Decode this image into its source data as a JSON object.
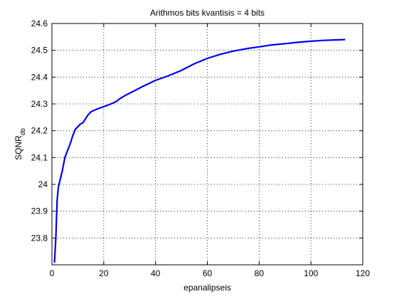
{
  "chart_data": {
    "type": "line",
    "title": "Arithmos bits kvantisis = 4 bits",
    "xlabel": "epanalipseis",
    "ylabel": "SQNR",
    "ylabel_subscript": "db",
    "xlim": [
      0,
      120
    ],
    "ylim": [
      23.7,
      24.6
    ],
    "y_data_min": 23.705,
    "xticks": [
      0,
      20,
      40,
      60,
      80,
      100,
      120
    ],
    "yticks": [
      23.8,
      23.9,
      24,
      24.1,
      24.2,
      24.3,
      24.4,
      24.5,
      24.6
    ],
    "xtick_labels": [
      "0",
      "20",
      "40",
      "60",
      "80",
      "100",
      "120"
    ],
    "ytick_labels": [
      "23.8",
      "23.9",
      "24",
      "24.1",
      "24.2",
      "24.3",
      "24.4",
      "24.5",
      "24.6"
    ],
    "grid": true,
    "line_color": "#0000ee",
    "series": [
      {
        "x": [
          1,
          1.5,
          2,
          2.5,
          3,
          3.5,
          4,
          5,
          6,
          7,
          8,
          9,
          10,
          11,
          12,
          13,
          14,
          15,
          16,
          18,
          20,
          22,
          24,
          25,
          26,
          28,
          30,
          35,
          40,
          45,
          50,
          55,
          60,
          65,
          70,
          75,
          80,
          85,
          90,
          95,
          100,
          105,
          110,
          113
        ],
        "y": [
          23.71,
          23.8,
          23.94,
          23.99,
          24.01,
          24.03,
          24.05,
          24.1,
          24.125,
          24.15,
          24.18,
          24.205,
          24.215,
          24.225,
          24.23,
          24.245,
          24.26,
          24.27,
          24.275,
          24.283,
          24.29,
          24.297,
          24.305,
          24.31,
          24.318,
          24.33,
          24.34,
          24.365,
          24.388,
          24.405,
          24.425,
          24.45,
          24.47,
          24.485,
          24.497,
          24.506,
          24.513,
          24.52,
          24.525,
          24.53,
          24.534,
          24.537,
          24.539,
          24.54
        ]
      }
    ]
  }
}
